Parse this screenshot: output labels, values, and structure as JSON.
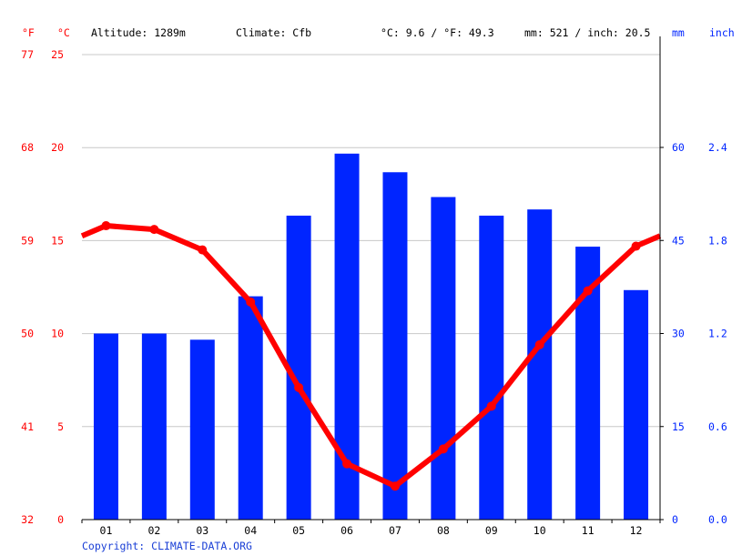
{
  "header": {
    "f_unit": "°F",
    "c_unit": "°C",
    "altitude": "Altitude: 1289m",
    "climate": "Climate: Cfb",
    "temp_avg": "°C: 9.6 / °F: 49.3",
    "precip_total": "mm: 521 / inch: 20.5",
    "mm_unit": "mm",
    "inch_unit": "inch"
  },
  "footer": {
    "copyright": "Copyright: CLIMATE-DATA.ORG"
  },
  "colors": {
    "temperature": "#ff0000",
    "precipitation": "#0025ff",
    "axis_left_text": "#ff0000",
    "axis_right_text": "#0025ff",
    "grid": "#c8c8c8",
    "copyright": "#1a3fd6"
  },
  "chart_data": {
    "type": "bar+line",
    "title": "",
    "categories": [
      "01",
      "02",
      "03",
      "04",
      "05",
      "06",
      "07",
      "08",
      "09",
      "10",
      "11",
      "12"
    ],
    "series": [
      {
        "name": "Precipitation (mm)",
        "type": "bar",
        "axis": "right",
        "values": [
          30,
          30,
          29,
          36,
          49,
          59,
          56,
          52,
          49,
          50,
          44,
          37
        ]
      },
      {
        "name": "Temperature (°C)",
        "type": "line",
        "axis": "left",
        "values": [
          15.8,
          15.6,
          14.5,
          11.7,
          7.1,
          3.0,
          1.8,
          3.8,
          6.1,
          9.4,
          12.3,
          14.7
        ]
      }
    ],
    "left_axis_c": {
      "ticks": [
        0,
        5,
        10,
        15,
        20,
        25
      ],
      "ylim": [
        0,
        25
      ]
    },
    "left_axis_f": {
      "ticks": [
        32,
        41,
        50,
        59,
        68,
        77
      ]
    },
    "right_axis_mm": {
      "ticks": [
        0,
        15,
        30,
        45,
        60
      ],
      "ylim": [
        0,
        75
      ]
    },
    "right_axis_inch": {
      "ticks": [
        "0.0",
        "0.6",
        "1.2",
        "1.8",
        "2.4"
      ]
    },
    "grid": true,
    "legend": "none"
  }
}
